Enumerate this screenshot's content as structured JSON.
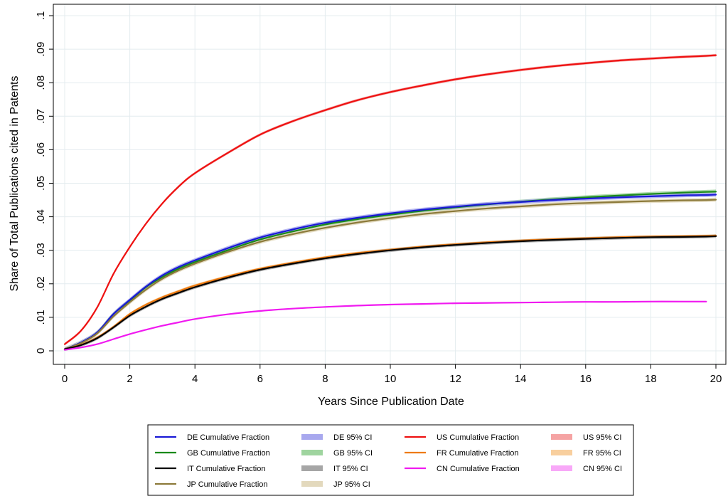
{
  "chart_data": {
    "type": "line",
    "title": "",
    "xlabel": "Years Since Publication Date",
    "ylabel": "Share of Total Publications cited in Patents",
    "xlim": [
      0,
      20
    ],
    "ylim": [
      0,
      0.1
    ],
    "xticks": [
      0,
      2,
      4,
      6,
      8,
      10,
      12,
      14,
      16,
      18,
      20
    ],
    "xtick_labels": [
      "0",
      "2",
      "4",
      "6",
      "8",
      "10",
      "12",
      "14",
      "16",
      "18",
      "20"
    ],
    "yticks": [
      0,
      0.01,
      0.02,
      0.03,
      0.04,
      0.05,
      0.06,
      0.07,
      0.08,
      0.09,
      0.1
    ],
    "ytick_labels": [
      "0",
      ".01",
      ".02",
      ".03",
      ".04",
      ".05",
      ".06",
      ".07",
      ".08",
      ".09",
      ".1"
    ],
    "grid": true,
    "legend_position": "bottom",
    "x": [
      0,
      0.5,
      1,
      1.5,
      2,
      2.5,
      3,
      3.5,
      4,
      5,
      6,
      7,
      8,
      9,
      10,
      11,
      12,
      13,
      14,
      15,
      16,
      17,
      18,
      19,
      19.7,
      20
    ],
    "series": [
      {
        "name": "US Cumulative Fraction",
        "ci_name": "US 95% CI",
        "color": "#ee1111",
        "ci_color": "#f5a3a3",
        "ci_halfwidth": 0.0004,
        "values": [
          0.002,
          0.006,
          0.013,
          0.023,
          0.031,
          0.038,
          0.044,
          0.049,
          0.053,
          0.059,
          0.0645,
          0.0685,
          0.0718,
          0.0748,
          0.0772,
          0.0792,
          0.081,
          0.0825,
          0.0838,
          0.0849,
          0.0858,
          0.0866,
          0.0872,
          0.0877,
          0.088,
          0.0882
        ]
      },
      {
        "name": "GB Cumulative Fraction",
        "ci_name": "GB 95% CI",
        "color": "#1a8a1a",
        "ci_color": "#9fd49f",
        "ci_halfwidth": 0.0006,
        "values": [
          0.0005,
          0.0025,
          0.0055,
          0.011,
          0.015,
          0.019,
          0.022,
          0.0245,
          0.0265,
          0.03,
          0.0332,
          0.0356,
          0.0377,
          0.0393,
          0.0406,
          0.0418,
          0.0428,
          0.0437,
          0.0445,
          0.0452,
          0.0458,
          0.0463,
          0.0468,
          0.0472,
          0.0474,
          0.0475
        ]
      },
      {
        "name": "DE Cumulative Fraction",
        "ci_name": "DE 95% CI",
        "color": "#1a1ad6",
        "ci_color": "#a8a8ee",
        "ci_halfwidth": 0.0006,
        "values": [
          0.0005,
          0.0025,
          0.0055,
          0.011,
          0.0152,
          0.0192,
          0.0225,
          0.025,
          0.027,
          0.0306,
          0.0338,
          0.0362,
          0.0382,
          0.0397,
          0.041,
          0.0421,
          0.043,
          0.0438,
          0.0444,
          0.045,
          0.0454,
          0.0458,
          0.0461,
          0.0464,
          0.0465,
          0.0466
        ]
      },
      {
        "name": "JP Cumulative Fraction",
        "ci_name": "JP 95% CI",
        "color": "#8c7a3a",
        "ci_color": "#e3d9bd",
        "ci_halfwidth": 0.0006,
        "values": [
          0.0005,
          0.0023,
          0.0052,
          0.0103,
          0.0145,
          0.0183,
          0.0215,
          0.024,
          0.026,
          0.0295,
          0.0325,
          0.0348,
          0.0367,
          0.0383,
          0.0396,
          0.0408,
          0.0417,
          0.0425,
          0.0431,
          0.0437,
          0.0441,
          0.0444,
          0.0447,
          0.0449,
          0.045,
          0.0451
        ]
      },
      {
        "name": "FR Cumulative Fraction",
        "ci_name": "FR 95% CI",
        "color": "#ee7a10",
        "ci_color": "#f8cf9e",
        "ci_halfwidth": 0.0004,
        "values": [
          0.0005,
          0.0018,
          0.004,
          0.0072,
          0.011,
          0.0138,
          0.016,
          0.0178,
          0.0195,
          0.0222,
          0.0245,
          0.0263,
          0.0279,
          0.0292,
          0.0302,
          0.0311,
          0.0318,
          0.0324,
          0.0329,
          0.0333,
          0.0336,
          0.0339,
          0.0341,
          0.0342,
          0.0343,
          0.0344
        ]
      },
      {
        "name": "IT Cumulative Fraction",
        "ci_name": "IT 95% CI",
        "color": "#000000",
        "ci_color": "#a6a6a6",
        "ci_halfwidth": 0.0005,
        "values": [
          0.0005,
          0.0017,
          0.0038,
          0.007,
          0.0105,
          0.0132,
          0.0155,
          0.0173,
          0.019,
          0.0218,
          0.0242,
          0.026,
          0.0276,
          0.0289,
          0.03,
          0.0309,
          0.0316,
          0.0322,
          0.0327,
          0.0331,
          0.0334,
          0.0337,
          0.0339,
          0.034,
          0.0341,
          0.0342
        ]
      },
      {
        "name": "CN Cumulative Fraction",
        "ci_name": "CN 95% CI",
        "color": "#f01af0",
        "ci_color": "#f8a8f8",
        "ci_halfwidth": 0.0002,
        "values": [
          0.0003,
          0.001,
          0.002,
          0.0035,
          0.005,
          0.0063,
          0.0075,
          0.0085,
          0.0095,
          0.0109,
          0.0119,
          0.0126,
          0.0131,
          0.0135,
          0.0138,
          0.014,
          0.0142,
          0.0143,
          0.0144,
          0.0145,
          0.0146,
          0.0146,
          0.0147,
          0.0147,
          0.0147,
          null
        ]
      }
    ],
    "legend_entries": [
      {
        "label": "DE Cumulative Fraction",
        "color": "#1a1ad6",
        "kind": "line"
      },
      {
        "label": "DE 95% CI",
        "color": "#a8a8ee",
        "kind": "band"
      },
      {
        "label": "US Cumulative Fraction",
        "color": "#ee1111",
        "kind": "line"
      },
      {
        "label": "US 95% CI",
        "color": "#f5a3a3",
        "kind": "band"
      },
      {
        "label": "GB Cumulative Fraction",
        "color": "#1a8a1a",
        "kind": "line"
      },
      {
        "label": "GB 95% CI",
        "color": "#9fd49f",
        "kind": "band"
      },
      {
        "label": "FR Cumulative Fraction",
        "color": "#ee7a10",
        "kind": "line"
      },
      {
        "label": "FR 95% CI",
        "color": "#f8cf9e",
        "kind": "band"
      },
      {
        "label": "IT Cumulative Fraction",
        "color": "#000000",
        "kind": "line"
      },
      {
        "label": "IT 95% CI",
        "color": "#a6a6a6",
        "kind": "band"
      },
      {
        "label": "CN Cumulative Fraction",
        "color": "#f01af0",
        "kind": "line"
      },
      {
        "label": "CN 95% CI",
        "color": "#f8a8f8",
        "kind": "band"
      },
      {
        "label": "JP Cumulative Fraction",
        "color": "#8c7a3a",
        "kind": "line"
      },
      {
        "label": "JP 95% CI",
        "color": "#e3d9bd",
        "kind": "band"
      }
    ]
  }
}
